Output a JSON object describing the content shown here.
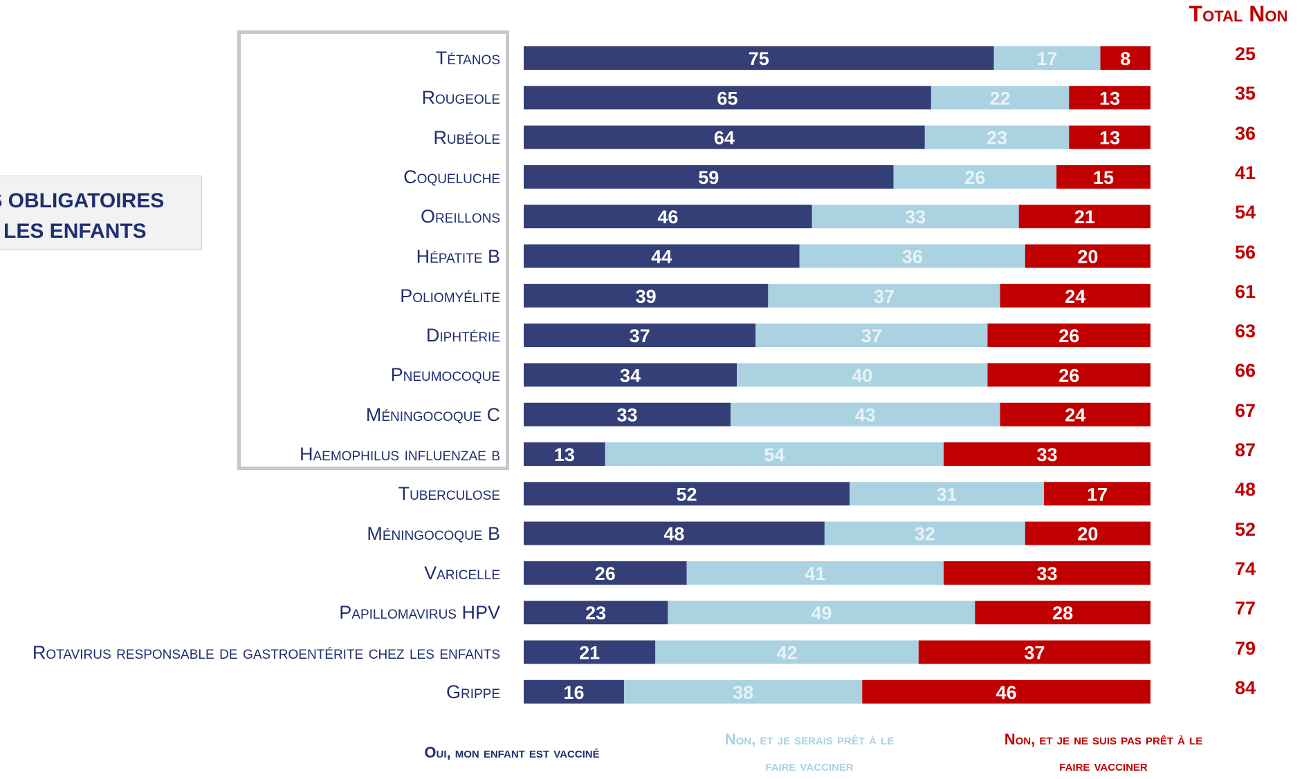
{
  "callout": {
    "line1": "IS OBLIGATOIRES",
    "line2": "R LES ENFANTS"
  },
  "total_header": "Total Non",
  "legend": {
    "yes": "Oui, mon enfant est vacciné",
    "no_ready_line1": "Non, et je serais prêt à le",
    "no_ready_line2": "faire vacciner",
    "no_not_ready_line1": "Non, et je ne suis pas prêt à le",
    "no_not_ready_line2": "faire vacciner"
  },
  "colors": {
    "yes": "#353f77",
    "no_ready": "#aad2e0",
    "no_not_ready": "#c00000",
    "label": "#1f2e6e",
    "total": "#c00000"
  },
  "chart_data": {
    "type": "bar",
    "orientation": "horizontal",
    "stacked": true,
    "categories": [
      "Tétanos",
      "Rougeole",
      "Rubéole",
      "Coqueluche",
      "Oreillons",
      "Hépatite B",
      "Poliomyélite",
      "Diphtérie",
      "Pneumocoque",
      "Méningocoque C",
      "Haemophilus influenzae b",
      "Tuberculose",
      "Méningocoque B",
      "Varicelle",
      "Papillomavirus HPV",
      "Rotavirus responsable de gastroentérite chez les enfants",
      "Grippe"
    ],
    "series": [
      {
        "name": "Oui, mon enfant est vacciné",
        "color": "#353f77",
        "values": [
          75,
          65,
          64,
          59,
          46,
          44,
          39,
          37,
          34,
          33,
          13,
          52,
          48,
          26,
          23,
          21,
          16
        ]
      },
      {
        "name": "Non, et je serais prêt à le faire vacciner",
        "color": "#aad2e0",
        "values": [
          17,
          22,
          23,
          26,
          33,
          36,
          37,
          37,
          40,
          43,
          54,
          31,
          32,
          41,
          49,
          42,
          38
        ]
      },
      {
        "name": "Non, et je ne suis pas prêt à le faire vacciner",
        "color": "#c00000",
        "values": [
          8,
          13,
          13,
          15,
          21,
          20,
          24,
          26,
          26,
          24,
          33,
          17,
          20,
          33,
          28,
          37,
          46
        ]
      }
    ],
    "total_non": [
      25,
      35,
      36,
      41,
      54,
      56,
      61,
      63,
      66,
      67,
      87,
      48,
      52,
      74,
      77,
      79,
      84
    ],
    "xlim": [
      0,
      100
    ]
  }
}
